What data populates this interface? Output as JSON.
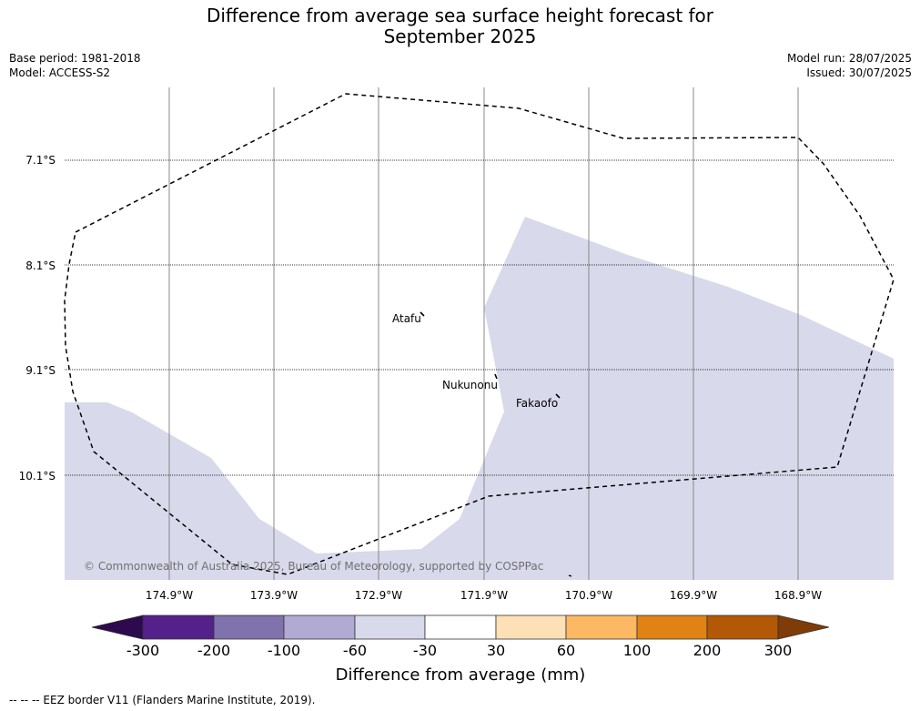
{
  "title_line1": "Difference from average sea surface height forecast for",
  "title_line2": "September 2025",
  "base_period": "Base period: 1981-2018",
  "model": "Model: ACCESS-S2",
  "model_run": "Model run: 28/07/2025",
  "issued": "Issued: 30/07/2025",
  "copyright": "© Commonwealth of Australia 2025, Bureau of Meteorology, supported by COSPPac",
  "lat_labels": [
    "7.1°S",
    "8.1°S",
    "9.1°S",
    "10.1°S"
  ],
  "lon_labels": [
    "174.9°W",
    "173.9°W",
    "172.9°W",
    "171.9°W",
    "170.9°W",
    "169.9°W",
    "168.9°W"
  ],
  "places": [
    "Atafu",
    "Nukunonu",
    "Fakaofo"
  ],
  "colorbar": {
    "title": "Difference from average (mm)",
    "ticks": [
      "-300",
      "-200",
      "-100",
      "-60",
      "-30",
      "30",
      "60",
      "100",
      "200",
      "300"
    ],
    "colors": [
      "#2d0a4e",
      "#54208a",
      "#8072ad",
      "#b1aad2",
      "#d8d9eb",
      "#ffffff",
      "#fee0b6",
      "#fdb863",
      "#e08214",
      "#b35806",
      "#7f3b08"
    ]
  },
  "map_colors": {
    "fill_minus30_to_minus60": "#d8d9eb",
    "eez_border": "#000000"
  },
  "footer": "--  --  -- EEZ border V11 (Flanders Marine Institute, 2019)."
}
